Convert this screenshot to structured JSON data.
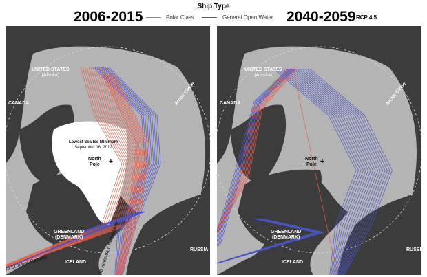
{
  "header": {
    "legend_title": "Ship Type",
    "period_left": "2006-2015",
    "period_right": "2040-2059",
    "scenario": "RCP 4.5",
    "legend": [
      {
        "label": "Polar Class",
        "color": "#e8604c"
      },
      {
        "label": "General Open Water",
        "color": "#4a55c8"
      }
    ]
  },
  "colors": {
    "land": "#3c3c3c",
    "sea": "#b4b4b4",
    "ice": "#ffffff",
    "polar": "#e8604c",
    "open_water": "#4a55c8"
  },
  "left_map": {
    "us": "UNITED STATES",
    "alaska": "(Alaska)",
    "canada": "CANADA",
    "arctic_circle": "Arctic Circle",
    "ice_note1": "Lowest Sea Ice Minimum",
    "ice_note2": "September 16, 2012",
    "np1": "North",
    "np2": "Pole",
    "greenland": "GREENLAND",
    "denmark": "(DENMARK)",
    "russia": "RUSSIA",
    "iceland": "ICELAND",
    "st_johns": "To St.Johns Canada",
    "rotterdam": "To Rotterdam Netherlands"
  },
  "right_map": {
    "us": "UNITED STATES",
    "alaska": "(Alaska)",
    "canada": "CANADA",
    "arctic_circle": "Arctic Circle",
    "np1": "North",
    "np2": "Pole",
    "greenland": "GREENLAND",
    "denmark": "(DENMARK)",
    "russia": "RUSSIA",
    "iceland": "ICELAND"
  }
}
